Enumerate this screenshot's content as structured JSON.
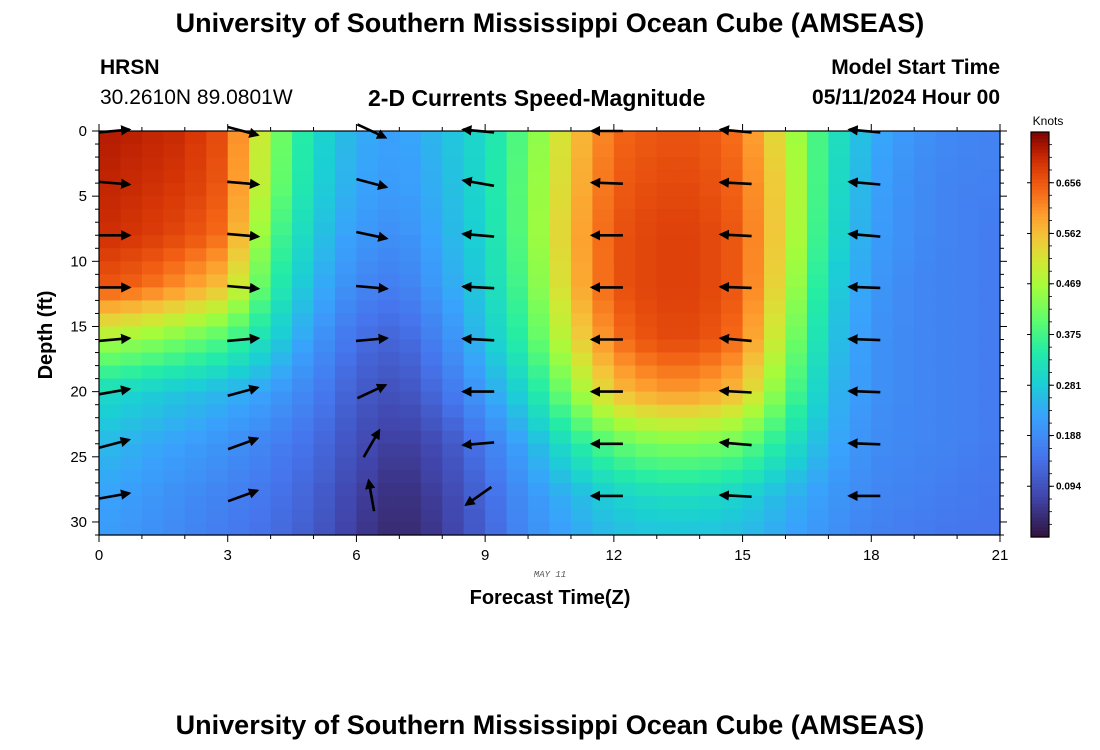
{
  "header": {
    "title": "University of Southern Mississippi Ocean Cube (AMSEAS)",
    "station": "HRSN",
    "coords": "30.2610N  89.0801W",
    "subtitle": "2-D Currents Speed-Magnitude",
    "model_start_label": "Model Start Time",
    "model_start_value": "05/11/2024 Hour 00"
  },
  "footer": {
    "title": "University of Southern Mississippi Ocean Cube (AMSEAS)"
  },
  "chart_data": {
    "type": "heatmap",
    "title": "2-D Currents Speed-Magnitude",
    "xlabel": "Forecast Time(Z)",
    "ylabel": "Depth (ft)",
    "date_label": "MAY 11",
    "xlim": [
      0,
      21
    ],
    "ylim": [
      0,
      31
    ],
    "y_inverted": true,
    "x_ticks": [
      0,
      3,
      6,
      9,
      12,
      15,
      18,
      21
    ],
    "y_ticks": [
      0,
      5,
      10,
      15,
      20,
      25,
      30
    ],
    "colorbar": {
      "unit": "Knots",
      "range": [
        0.0,
        0.75
      ],
      "ticks": [
        "0.656",
        "0.562",
        "0.469",
        "0.375",
        "0.281",
        "0.188",
        "0.094"
      ],
      "tick_values": [
        0.656,
        0.562,
        0.469,
        0.375,
        0.281,
        0.188,
        0.094
      ]
    },
    "x_hours": [
      0,
      1,
      2,
      3,
      4,
      5,
      6,
      7,
      8,
      9,
      10,
      11,
      12,
      13,
      14,
      15,
      16,
      17,
      18,
      19,
      20,
      21
    ],
    "depth_levels_ft": [
      0,
      4,
      8,
      12,
      16,
      20,
      24,
      28,
      31
    ],
    "speed_knots": [
      [
        0.72,
        0.71,
        0.7,
        0.66,
        0.45,
        0.31,
        0.24,
        0.22,
        0.26,
        0.31,
        0.41,
        0.55,
        0.64,
        0.66,
        0.66,
        0.63,
        0.5,
        0.34,
        0.24,
        0.2,
        0.18,
        0.17
      ],
      [
        0.71,
        0.7,
        0.69,
        0.65,
        0.44,
        0.3,
        0.23,
        0.21,
        0.25,
        0.31,
        0.42,
        0.56,
        0.65,
        0.67,
        0.67,
        0.64,
        0.52,
        0.33,
        0.23,
        0.19,
        0.17,
        0.17
      ],
      [
        0.7,
        0.69,
        0.67,
        0.63,
        0.4,
        0.28,
        0.21,
        0.19,
        0.24,
        0.3,
        0.42,
        0.57,
        0.66,
        0.68,
        0.68,
        0.65,
        0.52,
        0.32,
        0.22,
        0.19,
        0.17,
        0.16
      ],
      [
        0.66,
        0.64,
        0.6,
        0.55,
        0.36,
        0.25,
        0.18,
        0.16,
        0.22,
        0.29,
        0.4,
        0.56,
        0.66,
        0.68,
        0.68,
        0.65,
        0.5,
        0.3,
        0.21,
        0.18,
        0.17,
        0.16
      ],
      [
        0.47,
        0.45,
        0.42,
        0.38,
        0.3,
        0.21,
        0.14,
        0.12,
        0.18,
        0.27,
        0.37,
        0.52,
        0.63,
        0.67,
        0.67,
        0.63,
        0.46,
        0.28,
        0.2,
        0.18,
        0.17,
        0.16
      ],
      [
        0.31,
        0.29,
        0.27,
        0.25,
        0.22,
        0.17,
        0.11,
        0.09,
        0.14,
        0.22,
        0.31,
        0.44,
        0.56,
        0.6,
        0.6,
        0.56,
        0.41,
        0.26,
        0.2,
        0.18,
        0.17,
        0.16
      ],
      [
        0.26,
        0.24,
        0.22,
        0.2,
        0.17,
        0.14,
        0.09,
        0.06,
        0.09,
        0.16,
        0.24,
        0.33,
        0.4,
        0.43,
        0.43,
        0.41,
        0.33,
        0.24,
        0.19,
        0.18,
        0.17,
        0.16
      ],
      [
        0.23,
        0.21,
        0.19,
        0.17,
        0.15,
        0.12,
        0.07,
        0.04,
        0.07,
        0.13,
        0.2,
        0.25,
        0.29,
        0.31,
        0.31,
        0.29,
        0.25,
        0.21,
        0.18,
        0.17,
        0.16,
        0.15
      ],
      [
        0.22,
        0.2,
        0.18,
        0.16,
        0.14,
        0.11,
        0.06,
        0.03,
        0.06,
        0.12,
        0.19,
        0.23,
        0.26,
        0.27,
        0.27,
        0.26,
        0.23,
        0.2,
        0.17,
        0.16,
        0.15,
        0.15
      ]
    ],
    "vector_hours": [
      0,
      3,
      6,
      8.5,
      11.5,
      14.5,
      17.5
    ],
    "vector_depths_ft": [
      0,
      4,
      8,
      12,
      16,
      20,
      24,
      28
    ],
    "vector_angles_deg": [
      [
        5,
        -15,
        -25,
        5,
        0,
        5,
        5
      ],
      [
        -5,
        -5,
        -15,
        10,
        2,
        3,
        5
      ],
      [
        0,
        -5,
        -12,
        5,
        0,
        3,
        5
      ],
      [
        0,
        -5,
        -5,
        3,
        0,
        2,
        2
      ],
      [
        5,
        5,
        5,
        3,
        0,
        5,
        2
      ],
      [
        10,
        15,
        25,
        0,
        0,
        3,
        2
      ],
      [
        15,
        20,
        60,
        -5,
        0,
        5,
        2
      ],
      [
        10,
        20,
        100,
        -35,
        0,
        3,
        0
      ]
    ],
    "vector_direction": [
      [
        "E",
        "E",
        "E",
        "W",
        "W",
        "W",
        "W"
      ],
      [
        "E",
        "E",
        "E",
        "W",
        "W",
        "W",
        "W"
      ],
      [
        "E",
        "E",
        "E",
        "W",
        "W",
        "W",
        "W"
      ],
      [
        "E",
        "E",
        "E",
        "W",
        "W",
        "W",
        "W"
      ],
      [
        "E",
        "E",
        "E",
        "W",
        "W",
        "W",
        "W"
      ],
      [
        "E",
        "E",
        "E",
        "W",
        "W",
        "W",
        "W"
      ],
      [
        "E",
        "E",
        "E",
        "W",
        "W",
        "W",
        "W"
      ],
      [
        "E",
        "E",
        "N",
        "W",
        "W",
        "W",
        "W"
      ]
    ]
  }
}
